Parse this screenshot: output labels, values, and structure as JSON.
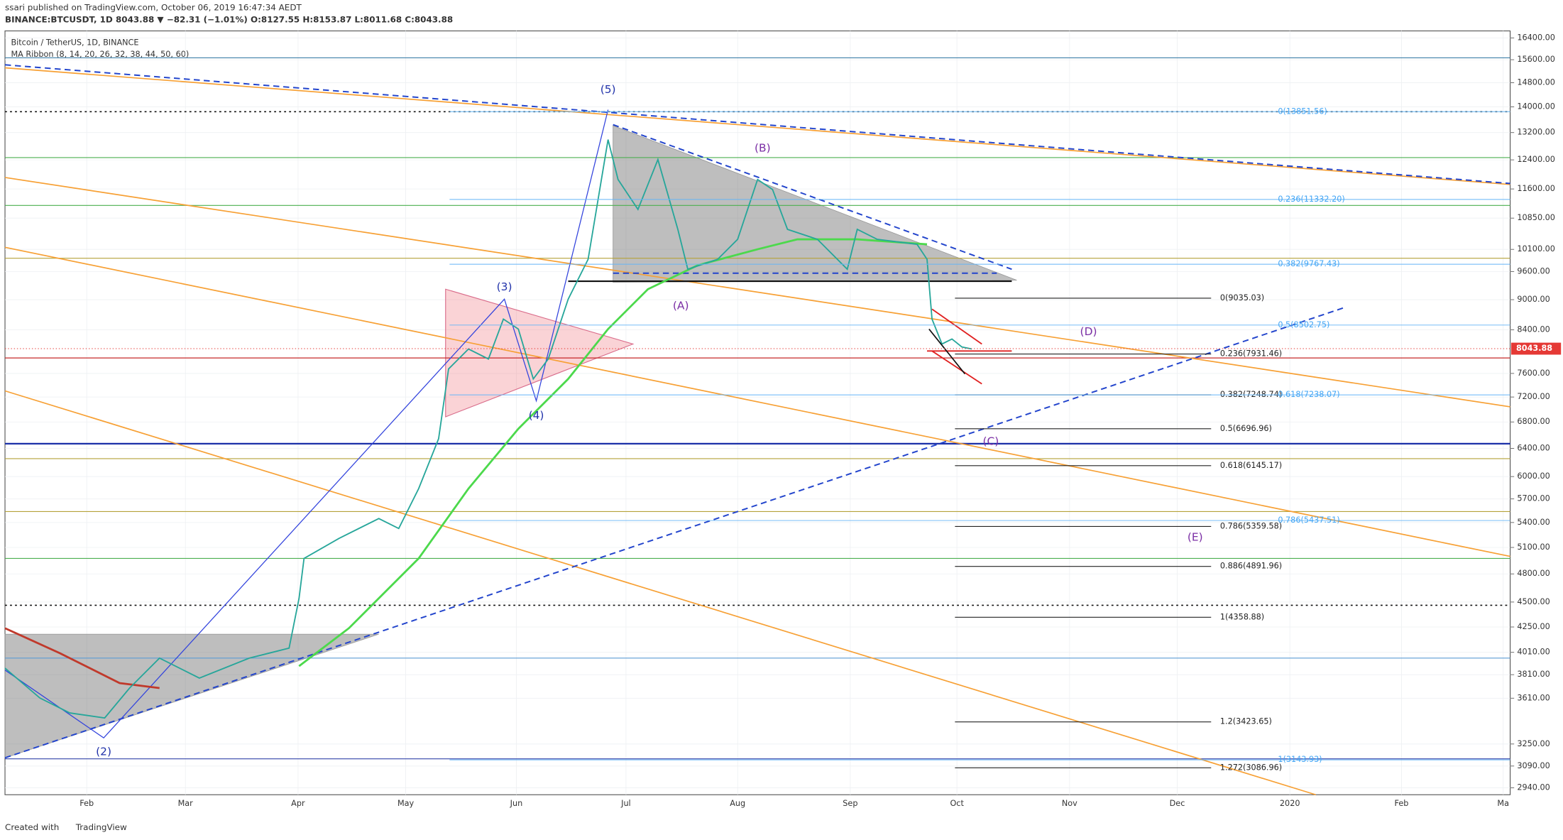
{
  "header": {
    "publisher": "ssari published on TradingView.com, October 06, 2019 16:47:34 AEDT",
    "symbol_line": "BINANCE:BTCUSDT, 1D 8043.88 ▼ −82.31 (−1.01%) O:8127.55 H:8153.87 L:8011.68 C:8043.88"
  },
  "legend": {
    "title": "Bitcoin / TetherUS, 1D, BINANCE",
    "indicator": "MA Ribbon (8, 14, 20, 26, 32, 38, 44, 50, 60)"
  },
  "price_axis": {
    "scale": "log",
    "range": [
      2940,
      16400
    ],
    "ticks": [
      {
        "value": 16400,
        "label": "16400.00"
      },
      {
        "value": 15600,
        "label": "15600.00"
      },
      {
        "value": 14800,
        "label": "14800.00"
      },
      {
        "value": 14000,
        "label": "14000.00"
      },
      {
        "value": 13200,
        "label": "13200.00"
      },
      {
        "value": 12400,
        "label": "12400.00"
      },
      {
        "value": 11600,
        "label": "11600.00"
      },
      {
        "value": 10850,
        "label": "10850.00"
      },
      {
        "value": 10100,
        "label": "10100.00"
      },
      {
        "value": 9600,
        "label": "9600.00"
      },
      {
        "value": 9000,
        "label": "9000.00"
      },
      {
        "value": 8400,
        "label": "8400.00"
      },
      {
        "value": 7600,
        "label": "7600.00"
      },
      {
        "value": 7200,
        "label": "7200.00"
      },
      {
        "value": 6800,
        "label": "6800.00"
      },
      {
        "value": 6400,
        "label": "6400.00"
      },
      {
        "value": 6000,
        "label": "6000.00"
      },
      {
        "value": 5700,
        "label": "5700.00"
      },
      {
        "value": 5400,
        "label": "5400.00"
      },
      {
        "value": 5100,
        "label": "5100.00"
      },
      {
        "value": 4800,
        "label": "4800.00"
      },
      {
        "value": 4500,
        "label": "4500.00"
      },
      {
        "value": 4250,
        "label": "4250.00"
      },
      {
        "value": 4010,
        "label": "4010.00"
      },
      {
        "value": 3810,
        "label": "3810.00"
      },
      {
        "value": 3610,
        "label": "3610.00"
      },
      {
        "value": 3250,
        "label": "3250.00"
      },
      {
        "value": 3090,
        "label": "3090.00"
      },
      {
        "value": 2940,
        "label": "2940.00"
      }
    ],
    "last_price": 8043.88
  },
  "time_axis": {
    "labels": [
      "Feb",
      "Mar",
      "Apr",
      "May",
      "Jun",
      "Jul",
      "Aug",
      "Sep",
      "Oct",
      "Nov",
      "Dec",
      "2020",
      "Feb",
      "Ma"
    ]
  },
  "fib_black": [
    "0(9035.03)",
    "0.236(7931.46)",
    "0.382(7248.74)",
    "0.5(6696.96)",
    "0.618(6145.17)",
    "0.786(5359.58)",
    "0.886(4891.96)",
    "1(4358.88)",
    "1.2(3423.65)",
    "1.272(3086.96)"
  ],
  "fib_blue": [
    "0(13851.56)",
    "0.236(11332.20)",
    "0.382(9767.43)",
    "0.5(8502.75)",
    "0.618(7238.07)",
    "0.786(5437.51)",
    "1(3143.93)"
  ],
  "wave_labels": [
    "(5)",
    "(3)",
    "(4)",
    "(2)",
    "(A)",
    "(B)",
    "(C)",
    "(D)",
    "(E)"
  ],
  "footer": {
    "created_with": "Created with",
    "brand": "TradingView"
  }
}
